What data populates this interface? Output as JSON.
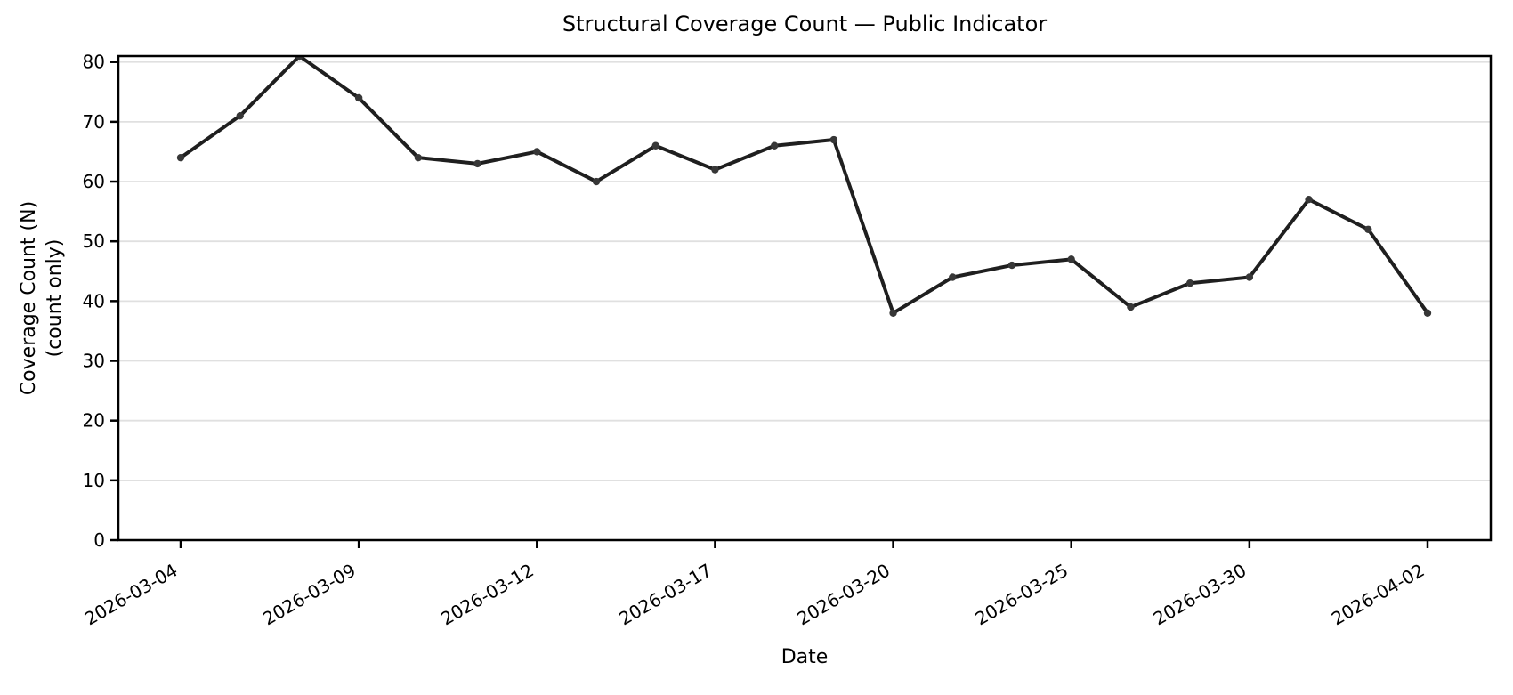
{
  "chart_data": {
    "type": "line",
    "title": "Structural Coverage Count — Public Indicator",
    "xlabel": "Date",
    "ylabel_line1": "Coverage Count (N)",
    "ylabel_line2": "(count only)",
    "x": [
      "2026-03-04",
      "2026-03-05",
      "2026-03-06",
      "2026-03-09",
      "2026-03-10",
      "2026-03-11",
      "2026-03-12",
      "2026-03-13",
      "2026-03-16",
      "2026-03-17",
      "2026-03-18",
      "2026-03-19",
      "2026-03-20",
      "2026-03-23",
      "2026-03-24",
      "2026-03-25",
      "2026-03-26",
      "2026-03-27",
      "2026-03-30",
      "2026-03-31",
      "2026-04-01",
      "2026-04-02"
    ],
    "series": [
      {
        "name": "Coverage Count",
        "values": [
          64,
          71,
          81,
          74,
          64,
          63,
          65,
          60,
          66,
          62,
          66,
          67,
          38,
          44,
          46,
          47,
          39,
          43,
          44,
          57,
          52,
          38
        ]
      }
    ],
    "xtick_indices": [
      0,
      3,
      6,
      9,
      12,
      15,
      18,
      21
    ],
    "xtick_labels": [
      "2026-03-04",
      "2026-03-09",
      "2026-03-12",
      "2026-03-17",
      "2026-03-20",
      "2026-03-25",
      "2026-03-30",
      "2026-04-02"
    ],
    "xtick_rotation_deg": -30,
    "ytick_values": [
      0,
      10,
      20,
      30,
      40,
      50,
      60,
      70,
      80
    ],
    "ylim": [
      0,
      81
    ],
    "grid": "horizontal-only",
    "legend": "none",
    "line_color": "#1f1f1f",
    "marker_color": "#373737",
    "grid_color": "#e0e0e0",
    "spine_color": "#000000",
    "text_color": "#000000"
  }
}
